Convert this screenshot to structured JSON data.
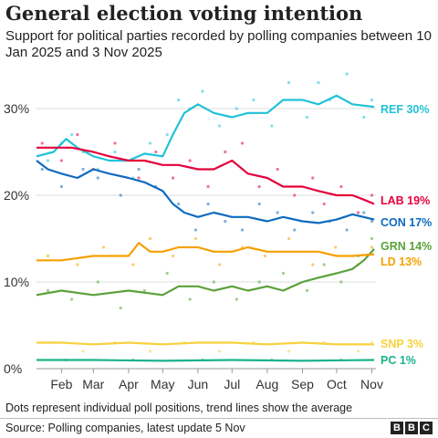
{
  "title": "General election voting intention",
  "subtitle": "Support for political parties recorded by polling companies between 10 Jan 2025 and 3 Nov 2025",
  "footnote": "Dots represent individual poll positions, trend lines show the average",
  "source": "Source: Polling companies, latest update 5 Nov",
  "logo_letters": [
    "B",
    "B",
    "C"
  ],
  "chart_data": {
    "type": "line",
    "x_range": [
      "2025-01-10",
      "2025-11-03"
    ],
    "ylim": [
      0,
      32
    ],
    "y_ticks": [
      {
        "value": 0,
        "label": "0%"
      },
      {
        "value": 10,
        "label": "10%"
      },
      {
        "value": 20,
        "label": "20%"
      },
      {
        "value": 30,
        "label": "30%"
      }
    ],
    "x_ticks": [
      {
        "date": "2025-02-01",
        "label": "Feb"
      },
      {
        "date": "2025-03-01",
        "label": "Mar"
      },
      {
        "date": "2025-04-01",
        "label": "Apr"
      },
      {
        "date": "2025-05-01",
        "label": "May"
      },
      {
        "date": "2025-06-01",
        "label": "Jun"
      },
      {
        "date": "2025-07-01",
        "label": "Jul"
      },
      {
        "date": "2025-08-01",
        "label": "Aug"
      },
      {
        "date": "2025-09-01",
        "label": "Sep"
      },
      {
        "date": "2025-10-01",
        "label": "Oct"
      },
      {
        "date": "2025-11-01",
        "label": "Nov"
      }
    ],
    "grid": true,
    "legend": "direct labels at right end of lines",
    "series": [
      {
        "name": "REF",
        "label": "REF 30%",
        "color": "#1fc2d6",
        "trend": [
          [
            "2025-01-10",
            24.5
          ],
          [
            "2025-01-25",
            25.0
          ],
          [
            "2025-02-05",
            26.5
          ],
          [
            "2025-02-15",
            25.5
          ],
          [
            "2025-03-01",
            24.5
          ],
          [
            "2025-03-15",
            24.0
          ],
          [
            "2025-04-01",
            24.0
          ],
          [
            "2025-04-15",
            24.8
          ],
          [
            "2025-05-01",
            24.5
          ],
          [
            "2025-05-10",
            27.0
          ],
          [
            "2025-05-20",
            29.5
          ],
          [
            "2025-06-01",
            30.5
          ],
          [
            "2025-06-15",
            29.5
          ],
          [
            "2025-07-01",
            29.0
          ],
          [
            "2025-07-15",
            29.5
          ],
          [
            "2025-08-01",
            29.5
          ],
          [
            "2025-08-15",
            31.0
          ],
          [
            "2025-09-01",
            31.0
          ],
          [
            "2025-09-15",
            30.5
          ],
          [
            "2025-10-01",
            31.5
          ],
          [
            "2025-10-15",
            30.5
          ],
          [
            "2025-11-03",
            30.2
          ]
        ],
        "polls": [
          [
            "2025-01-20",
            24
          ],
          [
            "2025-02-01",
            26
          ],
          [
            "2025-02-10",
            27
          ],
          [
            "2025-02-20",
            25
          ],
          [
            "2025-03-05",
            23
          ],
          [
            "2025-03-20",
            25
          ],
          [
            "2025-04-05",
            22
          ],
          [
            "2025-04-20",
            26
          ],
          [
            "2025-05-05",
            27
          ],
          [
            "2025-05-15",
            31
          ],
          [
            "2025-05-25",
            30
          ],
          [
            "2025-06-05",
            32
          ],
          [
            "2025-06-20",
            28
          ],
          [
            "2025-07-05",
            30
          ],
          [
            "2025-07-20",
            31
          ],
          [
            "2025-08-05",
            28
          ],
          [
            "2025-08-20",
            33
          ],
          [
            "2025-09-05",
            29
          ],
          [
            "2025-09-15",
            33
          ],
          [
            "2025-09-25",
            31
          ],
          [
            "2025-10-10",
            34
          ],
          [
            "2025-10-25",
            29
          ],
          [
            "2025-11-01",
            31
          ]
        ]
      },
      {
        "name": "LAB",
        "label": "LAB 19%",
        "color": "#e4003b",
        "trend": [
          [
            "2025-01-10",
            25.5
          ],
          [
            "2025-01-25",
            25.5
          ],
          [
            "2025-02-10",
            25.5
          ],
          [
            "2025-03-01",
            25.0
          ],
          [
            "2025-03-15",
            24.5
          ],
          [
            "2025-04-01",
            24.0
          ],
          [
            "2025-04-15",
            24.0
          ],
          [
            "2025-05-01",
            23.5
          ],
          [
            "2025-05-15",
            23.5
          ],
          [
            "2025-06-01",
            23.0
          ],
          [
            "2025-06-15",
            23.0
          ],
          [
            "2025-07-01",
            24.0
          ],
          [
            "2025-07-15",
            22.5
          ],
          [
            "2025-08-01",
            22.0
          ],
          [
            "2025-08-15",
            21.0
          ],
          [
            "2025-09-01",
            21.0
          ],
          [
            "2025-09-15",
            20.5
          ],
          [
            "2025-10-01",
            20.0
          ],
          [
            "2025-10-15",
            20.0
          ],
          [
            "2025-10-25",
            19.5
          ],
          [
            "2025-11-03",
            19.0
          ]
        ],
        "polls": [
          [
            "2025-01-15",
            26
          ],
          [
            "2025-02-01",
            24
          ],
          [
            "2025-02-15",
            27
          ],
          [
            "2025-03-01",
            23
          ],
          [
            "2025-03-20",
            26
          ],
          [
            "2025-04-10",
            22
          ],
          [
            "2025-04-25",
            25
          ],
          [
            "2025-05-10",
            22
          ],
          [
            "2025-05-25",
            24
          ],
          [
            "2025-06-10",
            21
          ],
          [
            "2025-06-25",
            25
          ],
          [
            "2025-07-10",
            26
          ],
          [
            "2025-07-25",
            21
          ],
          [
            "2025-08-10",
            23
          ],
          [
            "2025-08-25",
            20
          ],
          [
            "2025-09-10",
            22
          ],
          [
            "2025-09-20",
            19
          ],
          [
            "2025-10-05",
            21
          ],
          [
            "2025-10-20",
            18
          ],
          [
            "2025-11-01",
            20
          ]
        ]
      },
      {
        "name": "CON",
        "label": "CON 17%",
        "color": "#0e6bbf",
        "trend": [
          [
            "2025-01-10",
            24.0
          ],
          [
            "2025-01-20",
            23.0
          ],
          [
            "2025-02-01",
            22.5
          ],
          [
            "2025-02-15",
            22.0
          ],
          [
            "2025-03-01",
            23.0
          ],
          [
            "2025-03-15",
            22.5
          ],
          [
            "2025-04-01",
            22.0
          ],
          [
            "2025-04-15",
            21.5
          ],
          [
            "2025-05-01",
            20.5
          ],
          [
            "2025-05-10",
            19.0
          ],
          [
            "2025-05-20",
            18.0
          ],
          [
            "2025-06-01",
            17.5
          ],
          [
            "2025-06-15",
            18.0
          ],
          [
            "2025-07-01",
            17.5
          ],
          [
            "2025-07-15",
            17.5
          ],
          [
            "2025-08-01",
            17.0
          ],
          [
            "2025-08-15",
            17.5
          ],
          [
            "2025-09-01",
            17.0
          ],
          [
            "2025-09-15",
            16.8
          ],
          [
            "2025-10-01",
            17.2
          ],
          [
            "2025-10-15",
            17.8
          ],
          [
            "2025-11-03",
            17.2
          ]
        ],
        "polls": [
          [
            "2025-01-15",
            23
          ],
          [
            "2025-02-01",
            21
          ],
          [
            "2025-02-20",
            23
          ],
          [
            "2025-03-05",
            22
          ],
          [
            "2025-03-25",
            20
          ],
          [
            "2025-04-10",
            23
          ],
          [
            "2025-04-25",
            21
          ],
          [
            "2025-05-15",
            19
          ],
          [
            "2025-05-30",
            16
          ],
          [
            "2025-06-10",
            19
          ],
          [
            "2025-06-25",
            17
          ],
          [
            "2025-07-10",
            16
          ],
          [
            "2025-07-25",
            19
          ],
          [
            "2025-08-10",
            18
          ],
          [
            "2025-08-25",
            16
          ],
          [
            "2025-09-10",
            18
          ],
          [
            "2025-09-25",
            17
          ],
          [
            "2025-10-10",
            16
          ],
          [
            "2025-10-25",
            18
          ],
          [
            "2025-11-01",
            17
          ]
        ]
      },
      {
        "name": "GRN",
        "label": "GRN 14%",
        "color": "#5aa13a",
        "trend": [
          [
            "2025-01-10",
            8.5
          ],
          [
            "2025-02-01",
            9.0
          ],
          [
            "2025-03-01",
            8.5
          ],
          [
            "2025-04-01",
            9.0
          ],
          [
            "2025-05-01",
            8.5
          ],
          [
            "2025-05-15",
            9.5
          ],
          [
            "2025-06-01",
            9.5
          ],
          [
            "2025-06-15",
            9.0
          ],
          [
            "2025-07-01",
            9.5
          ],
          [
            "2025-07-15",
            9.0
          ],
          [
            "2025-08-01",
            9.5
          ],
          [
            "2025-08-15",
            9.0
          ],
          [
            "2025-09-01",
            10.0
          ],
          [
            "2025-09-15",
            10.5
          ],
          [
            "2025-10-01",
            11.0
          ],
          [
            "2025-10-15",
            11.5
          ],
          [
            "2025-10-25",
            12.5
          ],
          [
            "2025-11-03",
            13.8
          ]
        ],
        "polls": [
          [
            "2025-01-20",
            9
          ],
          [
            "2025-02-10",
            8
          ],
          [
            "2025-03-05",
            10
          ],
          [
            "2025-03-25",
            7
          ],
          [
            "2025-04-15",
            9
          ],
          [
            "2025-05-05",
            11
          ],
          [
            "2025-05-25",
            8
          ],
          [
            "2025-06-15",
            10
          ],
          [
            "2025-07-05",
            8
          ],
          [
            "2025-07-25",
            10
          ],
          [
            "2025-08-15",
            11
          ],
          [
            "2025-09-05",
            9
          ],
          [
            "2025-09-20",
            12
          ],
          [
            "2025-10-05",
            10
          ],
          [
            "2025-10-20",
            13
          ],
          [
            "2025-11-01",
            15
          ]
        ]
      },
      {
        "name": "LD",
        "label": "LD 13%",
        "color": "#f5a000",
        "trend": [
          [
            "2025-01-10",
            12.5
          ],
          [
            "2025-02-01",
            12.5
          ],
          [
            "2025-03-01",
            13.0
          ],
          [
            "2025-04-01",
            13.0
          ],
          [
            "2025-04-10",
            14.5
          ],
          [
            "2025-04-20",
            13.5
          ],
          [
            "2025-05-01",
            13.5
          ],
          [
            "2025-05-15",
            14.0
          ],
          [
            "2025-06-01",
            14.0
          ],
          [
            "2025-06-15",
            13.5
          ],
          [
            "2025-07-01",
            13.5
          ],
          [
            "2025-07-15",
            14.0
          ],
          [
            "2025-08-01",
            13.5
          ],
          [
            "2025-08-15",
            13.5
          ],
          [
            "2025-09-01",
            13.5
          ],
          [
            "2025-09-15",
            13.5
          ],
          [
            "2025-10-01",
            13.0
          ],
          [
            "2025-10-15",
            13.0
          ],
          [
            "2025-11-03",
            13.2
          ]
        ],
        "polls": [
          [
            "2025-01-20",
            13
          ],
          [
            "2025-02-15",
            12
          ],
          [
            "2025-03-10",
            14
          ],
          [
            "2025-04-05",
            12
          ],
          [
            "2025-04-20",
            15
          ],
          [
            "2025-05-10",
            13
          ],
          [
            "2025-05-30",
            15
          ],
          [
            "2025-06-20",
            12
          ],
          [
            "2025-07-10",
            14
          ],
          [
            "2025-07-30",
            13
          ],
          [
            "2025-08-20",
            15
          ],
          [
            "2025-09-10",
            12
          ],
          [
            "2025-09-30",
            14
          ],
          [
            "2025-10-20",
            12
          ],
          [
            "2025-11-01",
            14
          ]
        ]
      },
      {
        "name": "SNP",
        "label": "SNP 3%",
        "color": "#f7d23e",
        "trend": [
          [
            "2025-01-10",
            3.0
          ],
          [
            "2025-02-01",
            3.0
          ],
          [
            "2025-03-01",
            2.8
          ],
          [
            "2025-04-01",
            3.0
          ],
          [
            "2025-05-01",
            2.8
          ],
          [
            "2025-06-01",
            3.0
          ],
          [
            "2025-07-01",
            3.0
          ],
          [
            "2025-08-01",
            2.8
          ],
          [
            "2025-09-01",
            3.0
          ],
          [
            "2025-10-01",
            2.8
          ],
          [
            "2025-11-03",
            2.8
          ]
        ],
        "polls": [
          [
            "2025-01-25",
            3
          ],
          [
            "2025-02-20",
            2
          ],
          [
            "2025-03-20",
            3
          ],
          [
            "2025-04-20",
            2
          ],
          [
            "2025-05-20",
            3
          ],
          [
            "2025-06-20",
            2
          ],
          [
            "2025-07-20",
            3
          ],
          [
            "2025-08-20",
            2
          ],
          [
            "2025-09-20",
            3
          ],
          [
            "2025-10-20",
            2
          ],
          [
            "2025-11-01",
            3
          ]
        ]
      },
      {
        "name": "PC",
        "label": "PC 1%",
        "color": "#1bb28b",
        "trend": [
          [
            "2025-01-10",
            1.0
          ],
          [
            "2025-03-01",
            1.0
          ],
          [
            "2025-05-01",
            0.9
          ],
          [
            "2025-07-01",
            1.0
          ],
          [
            "2025-09-01",
            0.9
          ],
          [
            "2025-11-03",
            1.0
          ]
        ],
        "polls": [
          [
            "2025-02-05",
            1
          ],
          [
            "2025-04-05",
            1
          ],
          [
            "2025-06-05",
            1
          ],
          [
            "2025-08-05",
            1
          ],
          [
            "2025-10-05",
            1
          ]
        ]
      }
    ]
  }
}
